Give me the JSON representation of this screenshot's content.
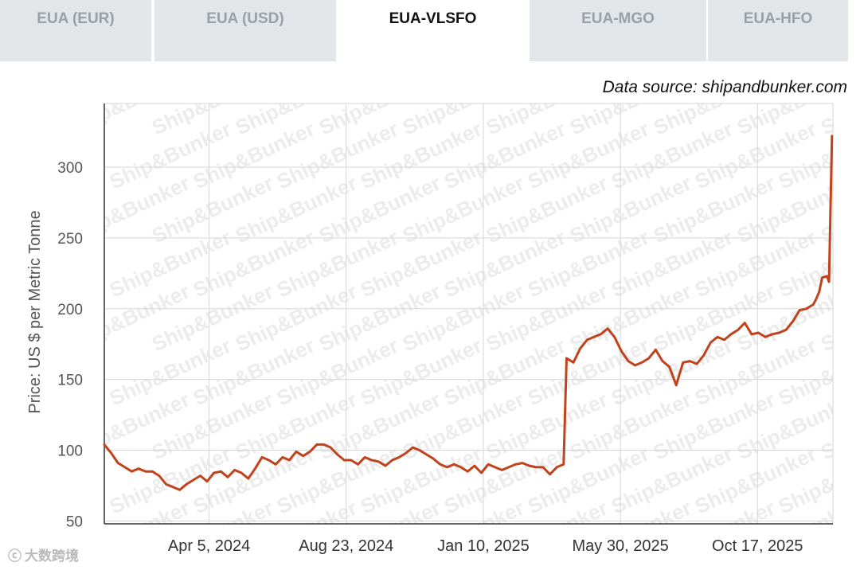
{
  "tabs": [
    {
      "label": "EUA (EUR)",
      "active": false
    },
    {
      "label": "EUA (USD)",
      "active": false
    },
    {
      "label": "EUA-VLSFO",
      "active": true
    },
    {
      "label": "EUA-MGO",
      "active": false
    },
    {
      "label": "EUA-HFO",
      "active": false
    }
  ],
  "source_text": "Data source: shipandbunker.com",
  "watermark_text": "Ship&Bunker",
  "bottom_watermark_text": "大数跨境",
  "colors": {
    "series": "#c0431d",
    "grid": "#d6d6d6",
    "axis": "#333333",
    "tab_bg": "#e3e6e8"
  },
  "chart_data": {
    "type": "line",
    "title": "",
    "xlabel": "",
    "ylabel": "Price: US $ per Metric Tonne",
    "ylim": [
      48,
      345
    ],
    "yticks": [
      50,
      100,
      150,
      200,
      250,
      300
    ],
    "xlim": [
      "2023-12-20",
      "2026-01-02"
    ],
    "xticks": [
      {
        "date": "2024-04-05",
        "label": "Apr 5, 2024"
      },
      {
        "date": "2024-08-23",
        "label": "Aug 23, 2024"
      },
      {
        "date": "2025-01-10",
        "label": "Jan 10, 2025"
      },
      {
        "date": "2025-05-30",
        "label": "May 30, 2025"
      },
      {
        "date": "2025-10-17",
        "label": "Oct 17, 2025"
      }
    ],
    "grid": true,
    "series": [
      {
        "name": "",
        "color": "#c0431d",
        "points": [
          [
            "2023-12-20",
            104
          ],
          [
            "2023-12-27",
            98
          ],
          [
            "2024-01-03",
            91
          ],
          [
            "2024-01-10",
            88
          ],
          [
            "2024-01-17",
            85
          ],
          [
            "2024-01-24",
            87
          ],
          [
            "2024-01-31",
            85
          ],
          [
            "2024-02-07",
            85
          ],
          [
            "2024-02-14",
            82
          ],
          [
            "2024-02-21",
            76
          ],
          [
            "2024-02-28",
            74
          ],
          [
            "2024-03-06",
            72
          ],
          [
            "2024-03-13",
            76
          ],
          [
            "2024-03-20",
            79
          ],
          [
            "2024-03-27",
            82
          ],
          [
            "2024-04-03",
            78
          ],
          [
            "2024-04-10",
            84
          ],
          [
            "2024-04-17",
            85
          ],
          [
            "2024-04-24",
            81
          ],
          [
            "2024-05-01",
            86
          ],
          [
            "2024-05-08",
            84
          ],
          [
            "2024-05-15",
            80
          ],
          [
            "2024-05-22",
            87
          ],
          [
            "2024-05-29",
            95
          ],
          [
            "2024-06-05",
            93
          ],
          [
            "2024-06-12",
            90
          ],
          [
            "2024-06-19",
            95
          ],
          [
            "2024-06-26",
            93
          ],
          [
            "2024-07-03",
            99
          ],
          [
            "2024-07-10",
            96
          ],
          [
            "2024-07-17",
            99
          ],
          [
            "2024-07-24",
            104
          ],
          [
            "2024-07-31",
            104
          ],
          [
            "2024-08-07",
            102
          ],
          [
            "2024-08-14",
            97
          ],
          [
            "2024-08-21",
            93
          ],
          [
            "2024-08-28",
            93
          ],
          [
            "2024-09-04",
            90
          ],
          [
            "2024-09-11",
            95
          ],
          [
            "2024-09-18",
            93
          ],
          [
            "2024-09-25",
            92
          ],
          [
            "2024-10-02",
            89
          ],
          [
            "2024-10-09",
            93
          ],
          [
            "2024-10-16",
            95
          ],
          [
            "2024-10-23",
            98
          ],
          [
            "2024-10-30",
            102
          ],
          [
            "2024-11-06",
            100
          ],
          [
            "2024-11-13",
            97
          ],
          [
            "2024-11-20",
            94
          ],
          [
            "2024-11-27",
            90
          ],
          [
            "2024-12-04",
            88
          ],
          [
            "2024-12-11",
            90
          ],
          [
            "2024-12-18",
            88
          ],
          [
            "2024-12-25",
            85
          ],
          [
            "2025-01-01",
            89
          ],
          [
            "2025-01-08",
            84
          ],
          [
            "2025-01-15",
            90
          ],
          [
            "2025-01-22",
            88
          ],
          [
            "2025-01-29",
            86
          ],
          [
            "2025-02-05",
            88
          ],
          [
            "2025-02-12",
            90
          ],
          [
            "2025-02-19",
            91
          ],
          [
            "2025-02-26",
            89
          ],
          [
            "2025-03-05",
            88
          ],
          [
            "2025-03-12",
            88
          ],
          [
            "2025-03-19",
            83
          ],
          [
            "2025-03-26",
            88
          ],
          [
            "2025-04-02",
            90
          ],
          [
            "2025-04-05",
            165
          ],
          [
            "2025-04-12",
            162
          ],
          [
            "2025-04-19",
            172
          ],
          [
            "2025-04-26",
            178
          ],
          [
            "2025-05-03",
            180
          ],
          [
            "2025-05-10",
            182
          ],
          [
            "2025-05-17",
            186
          ],
          [
            "2025-05-24",
            180
          ],
          [
            "2025-05-31",
            170
          ],
          [
            "2025-06-07",
            163
          ],
          [
            "2025-06-14",
            160
          ],
          [
            "2025-06-21",
            162
          ],
          [
            "2025-06-28",
            165
          ],
          [
            "2025-07-05",
            171
          ],
          [
            "2025-07-12",
            163
          ],
          [
            "2025-07-19",
            159
          ],
          [
            "2025-07-26",
            146
          ],
          [
            "2025-08-02",
            162
          ],
          [
            "2025-08-09",
            163
          ],
          [
            "2025-08-16",
            161
          ],
          [
            "2025-08-23",
            167
          ],
          [
            "2025-08-30",
            176
          ],
          [
            "2025-09-06",
            180
          ],
          [
            "2025-09-13",
            178
          ],
          [
            "2025-09-20",
            182
          ],
          [
            "2025-09-27",
            185
          ],
          [
            "2025-10-04",
            190
          ],
          [
            "2025-10-11",
            182
          ],
          [
            "2025-10-18",
            183
          ],
          [
            "2025-10-25",
            180
          ],
          [
            "2025-11-01",
            182
          ],
          [
            "2025-11-08",
            183
          ],
          [
            "2025-11-15",
            185
          ],
          [
            "2025-11-22",
            191
          ],
          [
            "2025-11-29",
            199
          ],
          [
            "2025-12-06",
            200
          ],
          [
            "2025-12-13",
            203
          ],
          [
            "2025-12-16",
            207
          ],
          [
            "2025-12-19",
            212
          ],
          [
            "2025-12-22",
            222
          ],
          [
            "2025-12-27",
            223
          ],
          [
            "2025-12-29",
            219
          ],
          [
            "2026-01-01",
            322
          ]
        ]
      }
    ]
  }
}
